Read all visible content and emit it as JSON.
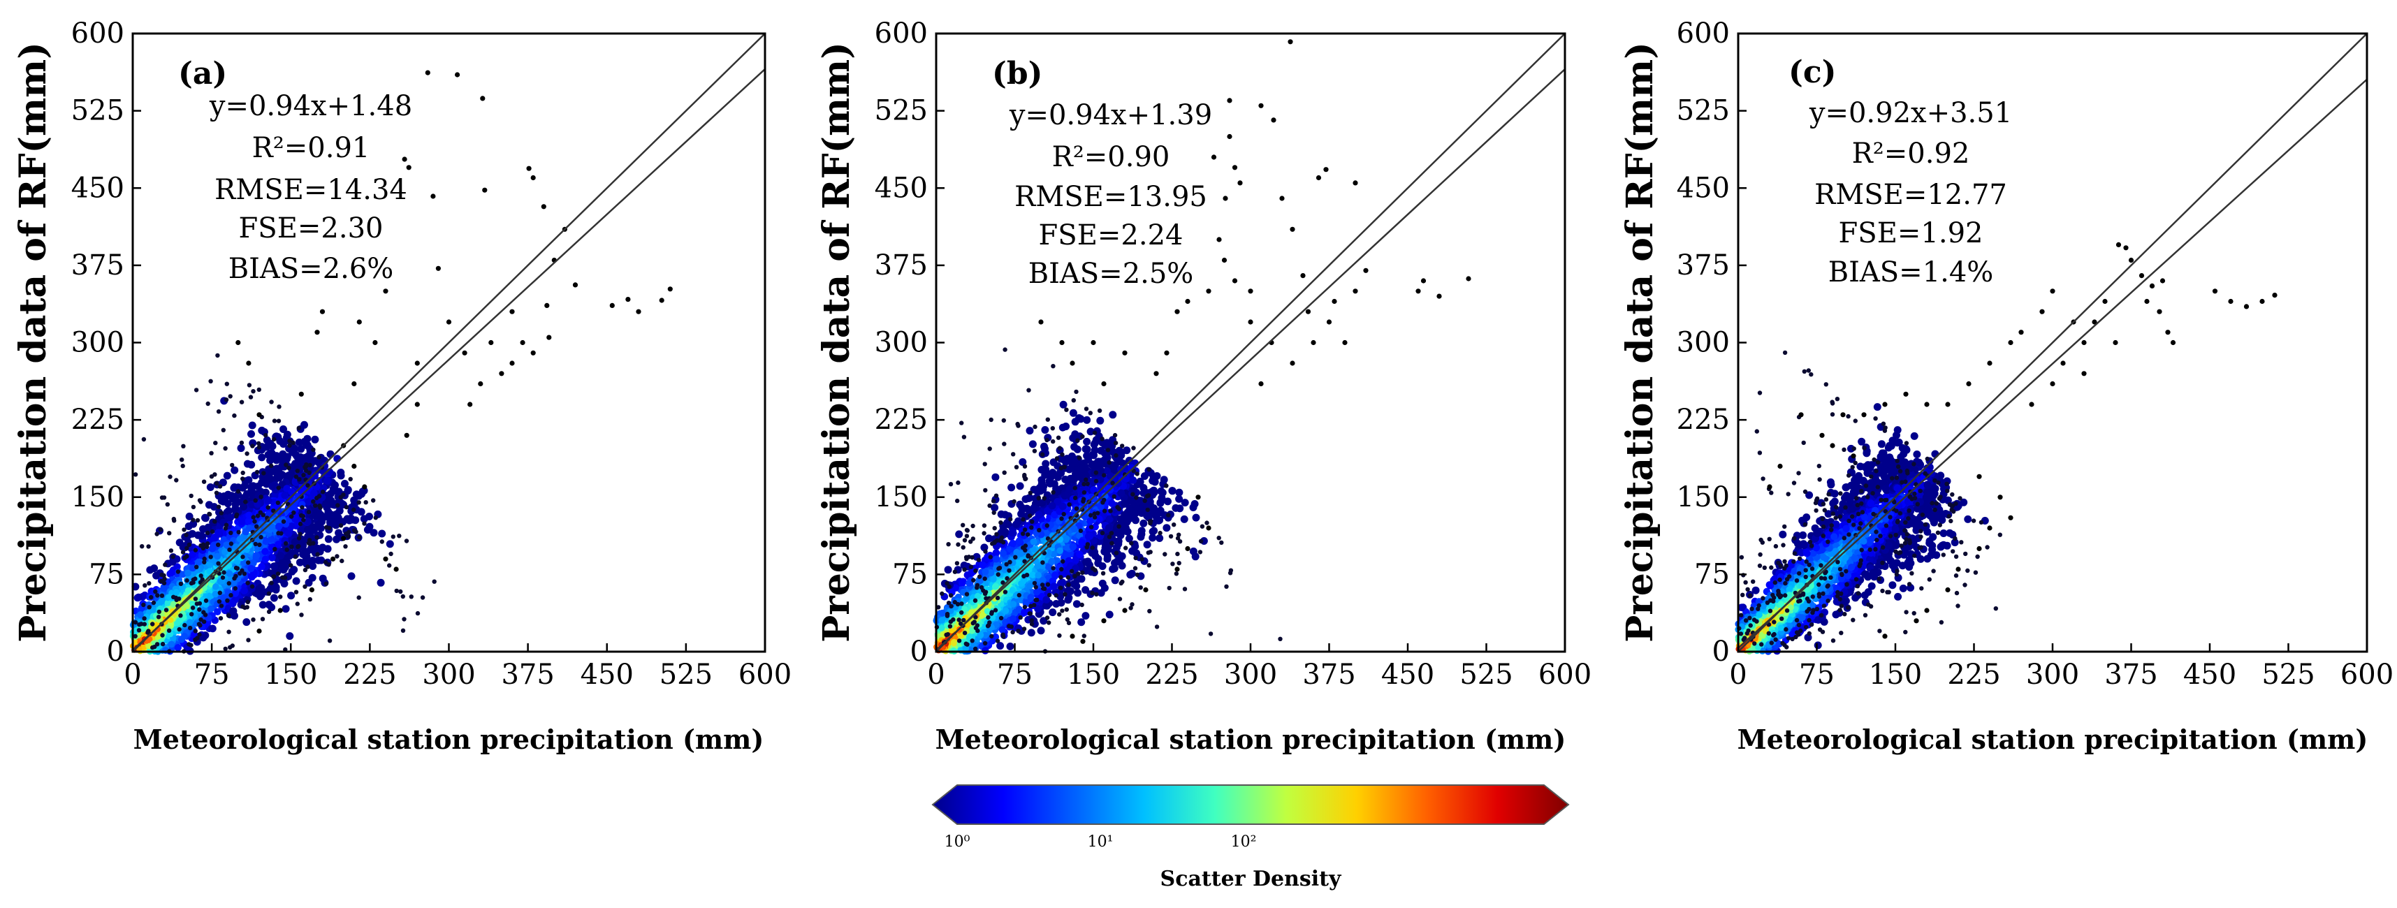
{
  "chart_data": [
    {
      "type": "scatter",
      "panel_label": "(a)",
      "xlabel": "Meteorological station precipitation (mm)",
      "ylabel": "Precipitation data of RF(mm)",
      "xlim": [
        0,
        600
      ],
      "ylim": [
        0,
        600
      ],
      "ticks": [
        "0",
        "75",
        "150",
        "225",
        "300",
        "375",
        "450",
        "525",
        "600"
      ],
      "annotations": [
        {
          "name": "equation",
          "text": "y=0.94x+1.48"
        },
        {
          "name": "r2",
          "text": "R²=0.91"
        },
        {
          "name": "rmse",
          "text": "RMSE=14.34"
        },
        {
          "name": "fse",
          "text": "FSE=2.30"
        },
        {
          "name": "bias",
          "text": "BIAS=2.6%"
        }
      ],
      "fit": {
        "slope": 0.94,
        "intercept": 1.48
      },
      "reference_line": {
        "slope": 1,
        "intercept": 0
      },
      "density_cloud": {
        "center_start": [
          8,
          8
        ],
        "center_end": [
          185,
          175
        ],
        "spread": 28
      },
      "outliers": [
        [
          280,
          562
        ],
        [
          308,
          560
        ],
        [
          332,
          537
        ],
        [
          258,
          478
        ],
        [
          262,
          470
        ],
        [
          285,
          442
        ],
        [
          334,
          448
        ],
        [
          376,
          469
        ],
        [
          380,
          460
        ],
        [
          390,
          432
        ],
        [
          410,
          410
        ],
        [
          400,
          380
        ],
        [
          393,
          336
        ],
        [
          420,
          356
        ],
        [
          455,
          336
        ],
        [
          470,
          342
        ],
        [
          480,
          330
        ],
        [
          502,
          341
        ],
        [
          510,
          352
        ],
        [
          360,
          330
        ],
        [
          340,
          300
        ],
        [
          290,
          372
        ],
        [
          300,
          320
        ],
        [
          315,
          290
        ],
        [
          270,
          240
        ],
        [
          240,
          350
        ],
        [
          230,
          300
        ],
        [
          215,
          320
        ],
        [
          180,
          330
        ],
        [
          175,
          310
        ],
        [
          210,
          260
        ],
        [
          240,
          90
        ],
        [
          250,
          80
        ],
        [
          100,
          300
        ],
        [
          110,
          280
        ],
        [
          120,
          230
        ],
        [
          160,
          250
        ],
        [
          200,
          200
        ],
        [
          210,
          180
        ],
        [
          220,
          160
        ],
        [
          260,
          210
        ],
        [
          270,
          280
        ],
        [
          370,
          300
        ],
        [
          380,
          290
        ],
        [
          395,
          305
        ],
        [
          320,
          240
        ],
        [
          330,
          260
        ],
        [
          350,
          270
        ],
        [
          360,
          280
        ],
        [
          120,
          20
        ],
        [
          140,
          40
        ],
        [
          170,
          60
        ],
        [
          190,
          90
        ],
        [
          200,
          110
        ]
      ]
    },
    {
      "type": "scatter",
      "panel_label": "(b)",
      "xlabel": "Meteorological station precipitation (mm)",
      "ylabel": "Precipitation data of RF(mm)",
      "xlim": [
        0,
        600
      ],
      "ylim": [
        0,
        600
      ],
      "ticks": [
        "0",
        "75",
        "150",
        "225",
        "300",
        "375",
        "450",
        "525",
        "600"
      ],
      "annotations": [
        {
          "name": "equation",
          "text": "y=0.94x+1.39"
        },
        {
          "name": "r2",
          "text": "R²=0.90"
        },
        {
          "name": "rmse",
          "text": "RMSE=13.95"
        },
        {
          "name": "fse",
          "text": "FSE=2.24"
        },
        {
          "name": "bias",
          "text": "BIAS=2.5%"
        }
      ],
      "fit": {
        "slope": 0.94,
        "intercept": 1.39
      },
      "reference_line": {
        "slope": 1,
        "intercept": 0
      },
      "density_cloud": {
        "center_start": [
          8,
          8
        ],
        "center_end": [
          190,
          180
        ],
        "spread": 30
      },
      "outliers": [
        [
          338,
          592
        ],
        [
          280,
          535
        ],
        [
          310,
          530
        ],
        [
          322,
          516
        ],
        [
          280,
          500
        ],
        [
          265,
          480
        ],
        [
          285,
          470
        ],
        [
          290,
          455
        ],
        [
          330,
          440
        ],
        [
          365,
          460
        ],
        [
          372,
          468
        ],
        [
          400,
          455
        ],
        [
          276,
          440
        ],
        [
          340,
          410
        ],
        [
          270,
          400
        ],
        [
          275,
          380
        ],
        [
          285,
          360
        ],
        [
          300,
          350
        ],
        [
          350,
          365
        ],
        [
          380,
          340
        ],
        [
          400,
          350
        ],
        [
          410,
          370
        ],
        [
          460,
          350
        ],
        [
          465,
          360
        ],
        [
          480,
          345
        ],
        [
          508,
          362
        ],
        [
          390,
          300
        ],
        [
          360,
          300
        ],
        [
          340,
          280
        ],
        [
          310,
          260
        ],
        [
          300,
          320
        ],
        [
          260,
          350
        ],
        [
          240,
          340
        ],
        [
          230,
          330
        ],
        [
          220,
          290
        ],
        [
          210,
          270
        ],
        [
          180,
          290
        ],
        [
          150,
          300
        ],
        [
          130,
          280
        ],
        [
          100,
          320
        ],
        [
          120,
          300
        ],
        [
          160,
          260
        ],
        [
          250,
          150
        ],
        [
          260,
          120
        ],
        [
          240,
          100
        ],
        [
          230,
          80
        ],
        [
          200,
          60
        ],
        [
          180,
          40
        ],
        [
          160,
          30
        ],
        [
          130,
          15
        ],
        [
          140,
          10
        ],
        [
          320,
          300
        ],
        [
          355,
          330
        ],
        [
          375,
          320
        ]
      ]
    },
    {
      "type": "scatter",
      "panel_label": "(c)",
      "xlabel": "Meteorological station precipitation (mm)",
      "ylabel": "Precipitation data of RF(mm)",
      "xlim": [
        0,
        600
      ],
      "ylim": [
        0,
        600
      ],
      "ticks": [
        "0",
        "75",
        "150",
        "225",
        "300",
        "375",
        "450",
        "525",
        "600"
      ],
      "annotations": [
        {
          "name": "equation",
          "text": "y=0.92x+3.51"
        },
        {
          "name": "r2",
          "text": "R²=0.92"
        },
        {
          "name": "rmse",
          "text": "RMSE=12.77"
        },
        {
          "name": "fse",
          "text": "FSE=1.92"
        },
        {
          "name": "bias",
          "text": "BIAS=1.4%"
        }
      ],
      "fit": {
        "slope": 0.92,
        "intercept": 3.51
      },
      "reference_line": {
        "slope": 1,
        "intercept": 0
      },
      "density_cloud": {
        "center_start": [
          8,
          8
        ],
        "center_end": [
          180,
          172
        ],
        "spread": 24
      },
      "outliers": [
        [
          363,
          395
        ],
        [
          370,
          392
        ],
        [
          375,
          380
        ],
        [
          385,
          365
        ],
        [
          395,
          355
        ],
        [
          405,
          360
        ],
        [
          390,
          340
        ],
        [
          402,
          330
        ],
        [
          410,
          310
        ],
        [
          415,
          300
        ],
        [
          455,
          350
        ],
        [
          470,
          340
        ],
        [
          485,
          335
        ],
        [
          500,
          340
        ],
        [
          512,
          346
        ],
        [
          350,
          340
        ],
        [
          340,
          320
        ],
        [
          330,
          300
        ],
        [
          320,
          320
        ],
        [
          300,
          350
        ],
        [
          290,
          330
        ],
        [
          270,
          310
        ],
        [
          260,
          300
        ],
        [
          240,
          280
        ],
        [
          220,
          260
        ],
        [
          200,
          240
        ],
        [
          180,
          240
        ],
        [
          160,
          250
        ],
        [
          140,
          240
        ],
        [
          120,
          230
        ],
        [
          100,
          230
        ],
        [
          60,
          230
        ],
        [
          80,
          210
        ],
        [
          40,
          180
        ],
        [
          30,
          160
        ],
        [
          90,
          200
        ],
        [
          110,
          190
        ],
        [
          230,
          170
        ],
        [
          250,
          150
        ],
        [
          260,
          130
        ],
        [
          240,
          120
        ],
        [
          230,
          100
        ],
        [
          210,
          80
        ],
        [
          200,
          60
        ],
        [
          180,
          40
        ],
        [
          170,
          30
        ],
        [
          140,
          15
        ],
        [
          310,
          280
        ],
        [
          360,
          300
        ],
        [
          330,
          270
        ],
        [
          280,
          240
        ],
        [
          300,
          260
        ]
      ]
    }
  ],
  "colorbar": {
    "title": "Scatter Density",
    "labels": [
      "10⁰",
      "10¹",
      "10²"
    ],
    "colors": [
      "#00008b",
      "#0000ff",
      "#0060ff",
      "#00c0ff",
      "#40ffc0",
      "#c0ff40",
      "#ffd000",
      "#ff6000",
      "#e00000",
      "#800000"
    ]
  }
}
